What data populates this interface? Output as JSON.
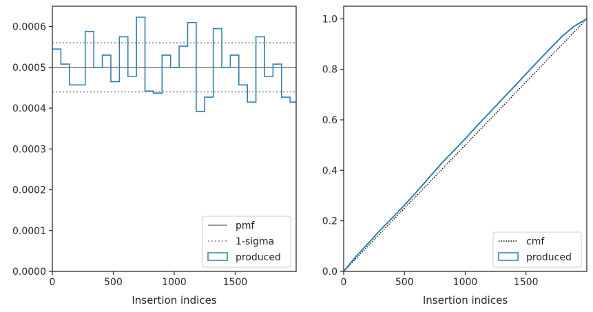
{
  "colors": {
    "produced": "#2f7fb0",
    "pmf": "#7a7a7a",
    "sigma": "#7a7a7a",
    "cmf": "#000000",
    "axes": "#262626"
  },
  "chart_data": [
    {
      "type": "step",
      "xlabel": "Insertion indices",
      "ylabel": "",
      "xlim": [
        0,
        2000
      ],
      "ylim": [
        0,
        0.00065
      ],
      "xticks": [
        0,
        500,
        1000,
        1500
      ],
      "xtick_labels": [
        "0",
        "500",
        "1000",
        "1500"
      ],
      "yticks": [
        0,
        0.0001,
        0.0002,
        0.0003,
        0.0004,
        0.0005,
        0.0006
      ],
      "ytick_labels": [
        "0.0000",
        "0.0001",
        "0.0002",
        "0.0003",
        "0.0004",
        "0.0005",
        "0.0006"
      ],
      "grid": false,
      "legend_position": "lower-right",
      "legend": [
        "pmf",
        "1-sigma",
        "produced"
      ],
      "pmf": 0.0005,
      "sigma_band": [
        0.00044,
        0.00056
      ],
      "bin_edges": [
        0,
        70,
        140,
        270,
        340,
        410,
        480,
        550,
        620,
        690,
        760,
        830,
        900,
        970,
        1040,
        1110,
        1180,
        1250,
        1320,
        1390,
        1460,
        1530,
        1600,
        1670,
        1740,
        1810,
        1880,
        1950,
        2000
      ],
      "produced": [
        0.000545,
        0.000508,
        0.000457,
        0.000588,
        0.0005,
        0.00053,
        0.000465,
        0.000575,
        0.000478,
        0.000623,
        0.000442,
        0.000437,
        0.00053,
        0.0005,
        0.000552,
        0.00061,
        0.000392,
        0.000427,
        0.000595,
        0.0005,
        0.00053,
        0.000457,
        0.000415,
        0.000575,
        0.000478,
        0.000508,
        0.000427,
        0.000415
      ]
    },
    {
      "type": "line",
      "xlabel": "Insertion indices",
      "ylabel": "",
      "xlim": [
        0,
        2000
      ],
      "ylim": [
        0,
        1.05
      ],
      "xticks": [
        0,
        500,
        1000,
        1500
      ],
      "xtick_labels": [
        "0",
        "500",
        "1000",
        "1500"
      ],
      "yticks": [
        0,
        0.2,
        0.4,
        0.6,
        0.8,
        1.0
      ],
      "ytick_labels": [
        "0.0",
        "0.2",
        "0.4",
        "0.6",
        "0.8",
        "1.0"
      ],
      "grid": false,
      "legend_position": "lower-right",
      "legend": [
        "cmf",
        "produced"
      ],
      "cmf": {
        "x": [
          0,
          2000
        ],
        "y": [
          0,
          1
        ]
      },
      "produced": {
        "x": [
          0,
          100,
          200,
          300,
          400,
          500,
          600,
          700,
          800,
          900,
          1000,
          1100,
          1200,
          1300,
          1400,
          1500,
          1600,
          1700,
          1800,
          1900,
          2000
        ],
        "y": [
          0,
          0.058,
          0.11,
          0.163,
          0.212,
          0.262,
          0.315,
          0.37,
          0.425,
          0.475,
          0.525,
          0.578,
          0.628,
          0.68,
          0.73,
          0.782,
          0.833,
          0.883,
          0.932,
          0.972,
          1.0
        ]
      }
    }
  ]
}
